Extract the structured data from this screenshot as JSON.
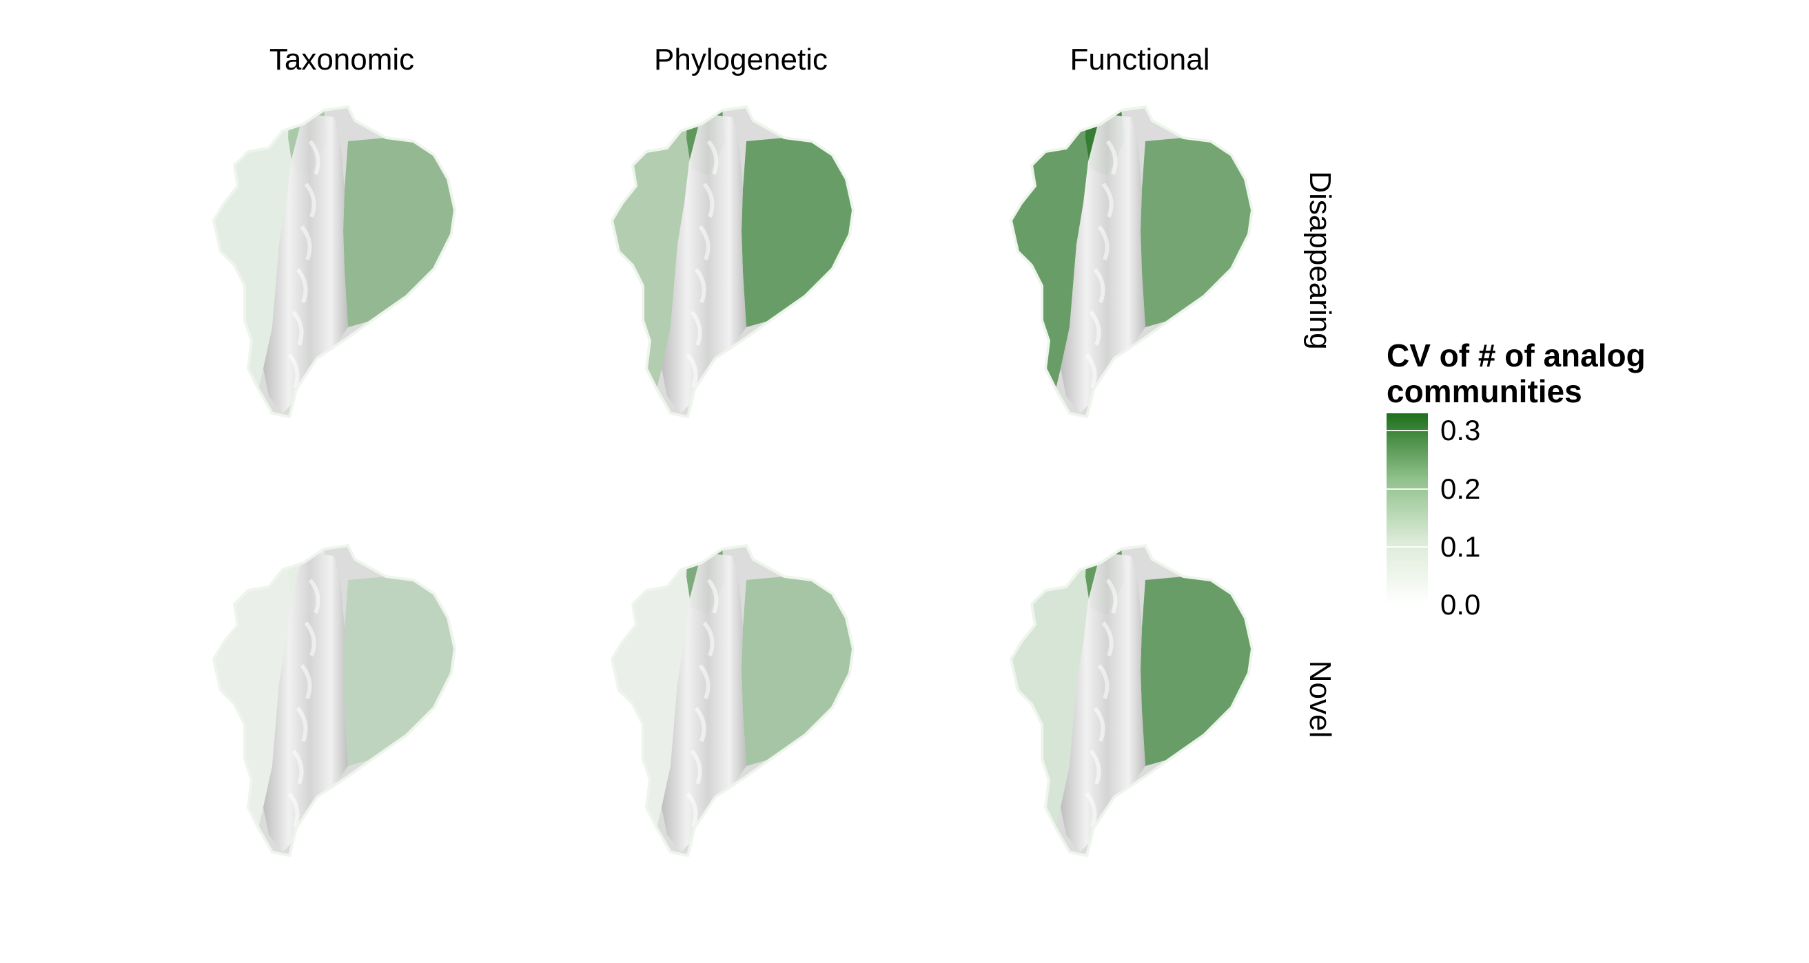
{
  "columns": [
    "Taxonomic",
    "Phylogenetic",
    "Functional"
  ],
  "rows": [
    "Disappearing",
    "Novel"
  ],
  "legend": {
    "title_line1": "CV of # of analog",
    "title_line2": "communities",
    "ticks": [
      "0.3",
      "0.2",
      "0.1",
      "0.0"
    ],
    "tick_values": [
      0.3,
      0.2,
      0.1,
      0.0
    ],
    "range": [
      0,
      0.33
    ]
  },
  "colors": {
    "low": "#ffffff",
    "high": "#1f6f1c",
    "hillshade_light": "#f2f2f2",
    "hillshade_dark": "#bdbdbd"
  },
  "panels": [
    {
      "column": "Taxonomic",
      "row": "Disappearing",
      "west_cv": 0.04,
      "east_cv": 0.17,
      "north_cv": 0.14
    },
    {
      "column": "Phylogenetic",
      "row": "Disappearing",
      "west_cv": 0.12,
      "east_cv": 0.24,
      "north_cv": 0.26
    },
    {
      "column": "Functional",
      "row": "Disappearing",
      "west_cv": 0.24,
      "east_cv": 0.22,
      "north_cv": 0.31
    },
    {
      "column": "Taxonomic",
      "row": "Novel",
      "west_cv": 0.03,
      "east_cv": 0.1,
      "north_cv": 0.04
    },
    {
      "column": "Phylogenetic",
      "row": "Novel",
      "west_cv": 0.03,
      "east_cv": 0.14,
      "north_cv": 0.22
    },
    {
      "column": "Functional",
      "row": "Novel",
      "west_cv": 0.06,
      "east_cv": 0.24,
      "north_cv": 0.26
    }
  ]
}
